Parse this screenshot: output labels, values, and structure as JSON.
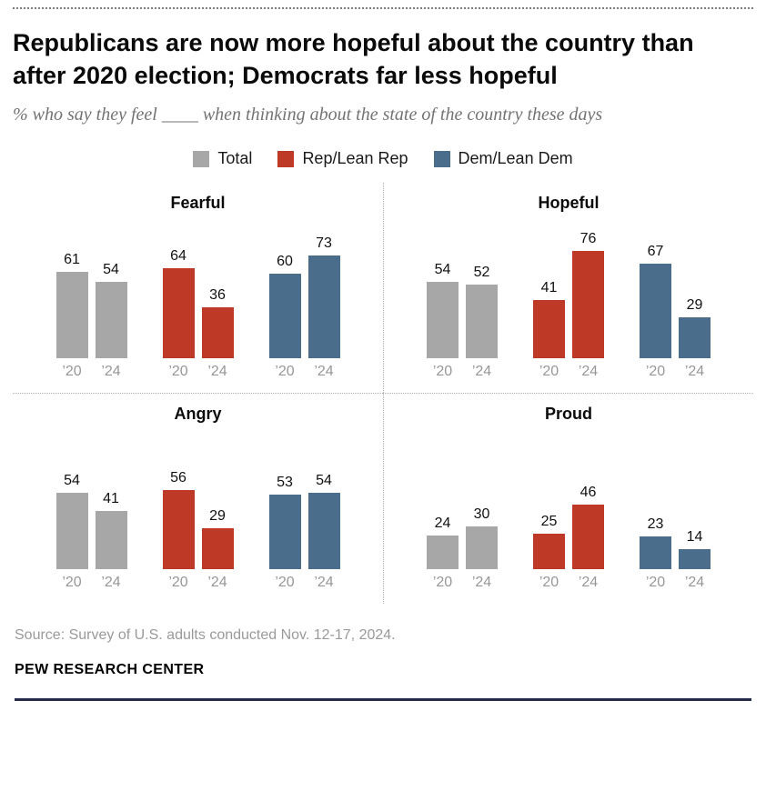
{
  "header": {
    "title": "Republicans are now more hopeful about the country than after 2020 election; Democrats far less hopeful",
    "subtitle": "% who say they feel ____ when thinking about the state of the country these days"
  },
  "legend": [
    {
      "label": "Total",
      "color": "#a7a7a7"
    },
    {
      "label": "Rep/Lean Rep",
      "color": "#bf3927"
    },
    {
      "label": "Dem/Lean Dem",
      "color": "#4a6d8c"
    }
  ],
  "chart_data": {
    "type": "bar",
    "years": [
      "’20",
      "’24"
    ],
    "groups": [
      "Total",
      "Rep/Lean Rep",
      "Dem/Lean Dem"
    ],
    "ylim": [
      0,
      80
    ],
    "grid": false,
    "legend_position": "top-center",
    "panels": [
      {
        "title": "Fearful",
        "series": [
          {
            "name": "Total",
            "values": [
              61,
              54
            ]
          },
          {
            "name": "Rep/Lean Rep",
            "values": [
              64,
              36
            ]
          },
          {
            "name": "Dem/Lean Dem",
            "values": [
              60,
              73
            ]
          }
        ]
      },
      {
        "title": "Hopeful",
        "series": [
          {
            "name": "Total",
            "values": [
              54,
              52
            ]
          },
          {
            "name": "Rep/Lean Rep",
            "values": [
              41,
              76
            ]
          },
          {
            "name": "Dem/Lean Dem",
            "values": [
              67,
              29
            ]
          }
        ]
      },
      {
        "title": "Angry",
        "series": [
          {
            "name": "Total",
            "values": [
              54,
              41
            ]
          },
          {
            "name": "Rep/Lean Rep",
            "values": [
              56,
              29
            ]
          },
          {
            "name": "Dem/Lean Dem",
            "values": [
              53,
              54
            ]
          }
        ]
      },
      {
        "title": "Proud",
        "series": [
          {
            "name": "Total",
            "values": [
              24,
              30
            ]
          },
          {
            "name": "Rep/Lean Rep",
            "values": [
              25,
              46
            ]
          },
          {
            "name": "Dem/Lean Dem",
            "values": [
              23,
              14
            ]
          }
        ]
      }
    ]
  },
  "footer": {
    "source": "Source: Survey of U.S. adults conducted Nov. 12-17, 2024.",
    "brand": "PEW RESEARCH CENTER"
  }
}
